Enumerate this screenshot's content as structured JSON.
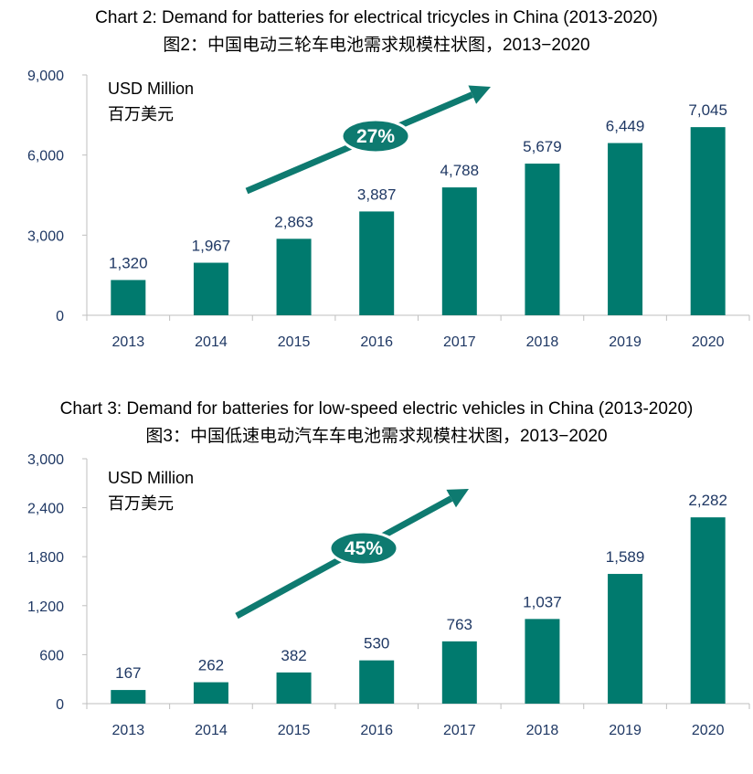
{
  "colors": {
    "bar": "#007a6e",
    "axis_text": "#1f3864",
    "grid": "#bfbfbf",
    "badge": "#0e7a70",
    "arrow": "#0e7a70"
  },
  "chart_data": [
    {
      "type": "bar",
      "title": "Chart 2: Demand for batteries for electrical tricycles in China (2013-2020)",
      "subtitle": "图2：中国电动三轮车电池需求规模柱状图，2013−2020",
      "unit_en": "USD Million",
      "unit_cn": "百万美元",
      "growth_label": "27%",
      "categories": [
        "2013",
        "2014",
        "2015",
        "2016",
        "2017",
        "2018",
        "2019",
        "2020"
      ],
      "values": [
        1320,
        1967,
        2863,
        3887,
        4788,
        5679,
        6449,
        7045
      ],
      "value_labels": [
        "1,320",
        "1,967",
        "2,863",
        "3,887",
        "4,788",
        "5,679",
        "6,449",
        "7,045"
      ],
      "ylim": [
        0,
        9000
      ],
      "yticks": [
        0,
        3000,
        6000,
        9000
      ],
      "ytick_labels": [
        "0",
        "3,000",
        "6,000",
        "9,000"
      ]
    },
    {
      "type": "bar",
      "title": "Chart 3: Demand for batteries for low-speed electric vehicles in China (2013-2020)",
      "subtitle": "图3：中国低速电动汽车车电池需求规模柱状图，2013−2020",
      "unit_en": "USD Million",
      "unit_cn": "百万美元",
      "growth_label": "45%",
      "categories": [
        "2013",
        "2014",
        "2015",
        "2016",
        "2017",
        "2018",
        "2019",
        "2020"
      ],
      "values": [
        167,
        262,
        382,
        530,
        763,
        1037,
        1589,
        2282
      ],
      "value_labels": [
        "167",
        "262",
        "382",
        "530",
        "763",
        "1,037",
        "1,589",
        "2,282"
      ],
      "ylim": [
        0,
        3000
      ],
      "yticks": [
        0,
        600,
        1200,
        1800,
        2400,
        3000
      ],
      "ytick_labels": [
        "0",
        "600",
        "1,200",
        "1,800",
        "2,400",
        "3,000"
      ]
    }
  ]
}
